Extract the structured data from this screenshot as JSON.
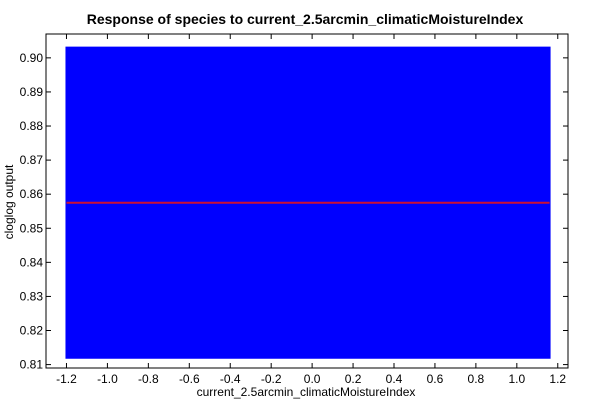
{
  "chart_data": {
    "type": "area",
    "title": "Response of species to current_2.5arcmin_climaticMoistureIndex",
    "xlabel": "current_2.5arcmin_climaticMoistureIndex",
    "ylabel": "cloglog output",
    "xlim": [
      -1.3,
      1.25
    ],
    "ylim": [
      0.809,
      0.907
    ],
    "x_ticks": [
      -1.2,
      -1.0,
      -0.8,
      -0.6,
      -0.4,
      -0.2,
      0.0,
      0.2,
      0.4,
      0.6,
      0.8,
      1.0,
      1.2
    ],
    "x_tick_labels": [
      "-1.2",
      "-1.0",
      "-0.8",
      "-0.6",
      "-0.4",
      "-0.2",
      "0.0",
      "0.2",
      "0.4",
      "0.6",
      "0.8",
      "1.0",
      "1.2"
    ],
    "y_ticks": [
      0.81,
      0.82,
      0.83,
      0.84,
      0.85,
      0.86,
      0.87,
      0.88,
      0.89,
      0.9
    ],
    "y_tick_labels": [
      "0.81",
      "0.82",
      "0.83",
      "0.84",
      "0.85",
      "0.86",
      "0.87",
      "0.88",
      "0.89",
      "0.90"
    ],
    "grid": false,
    "series": [
      {
        "kind": "band",
        "x": [
          -1.2,
          1.16
        ],
        "lower": [
          0.812,
          0.812
        ],
        "upper": [
          0.903,
          0.903
        ],
        "color": "#0000ff"
      },
      {
        "kind": "line",
        "x": [
          -1.2,
          1.16
        ],
        "values": [
          0.8575,
          0.8575
        ],
        "color": "#cc1133"
      }
    ]
  }
}
